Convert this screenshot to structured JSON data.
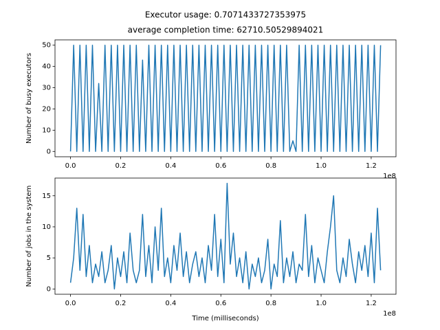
{
  "chart_data": [
    {
      "type": "line",
      "title": "Executor usage: 0.7071433727353975",
      "subtitle": "average completion time: 62710.50529894021",
      "y_label": "Number of busy executors",
      "x_offset_label": "1e8",
      "x": [
        0,
        1250000,
        2500000,
        3750000,
        5000000,
        6250000,
        7500000,
        8750000,
        10000000,
        11250000,
        12500000,
        13750000,
        15000000,
        16250000,
        17500000,
        18750000,
        20000000,
        21250000,
        22500000,
        23750000,
        25000000,
        26250000,
        27500000,
        28750000,
        30000000,
        31250000,
        32500000,
        33750000,
        35000000,
        36250000,
        37500000,
        38750000,
        40000000,
        41250000,
        42500000,
        43750000,
        45000000,
        46250000,
        47500000,
        48750000,
        50000000,
        51250000,
        52500000,
        53750000,
        55000000,
        56250000,
        57500000,
        58750000,
        60000000,
        61250000,
        62500000,
        63750000,
        65000000,
        66250000,
        67500000,
        68750000,
        70000000,
        71250000,
        72500000,
        73750000,
        75000000,
        76250000,
        77500000,
        78750000,
        80000000,
        81250000,
        82500000,
        83750000,
        85000000,
        86250000,
        87500000,
        88750000,
        90000000,
        91250000,
        92500000,
        93750000,
        95000000,
        96250000,
        97500000,
        98750000,
        100000000,
        101250000,
        102500000,
        103750000,
        105000000,
        106250000,
        107500000,
        108750000,
        110000000,
        111250000,
        112500000,
        113750000,
        115000000,
        116250000,
        117500000,
        118750000,
        120000000,
        121250000,
        122500000,
        123750000
      ],
      "series": [
        {
          "color": "#1f77b4",
          "values": [
            0,
            50,
            0,
            50,
            0,
            50,
            0,
            50,
            0,
            32,
            0,
            50,
            0,
            50,
            0,
            50,
            0,
            50,
            0,
            50,
            0,
            50,
            0,
            43,
            0,
            50,
            0,
            50,
            0,
            50,
            0,
            50,
            0,
            50,
            0,
            50,
            0,
            50,
            0,
            50,
            0,
            50,
            0,
            50,
            0,
            50,
            0,
            50,
            0,
            50,
            0,
            50,
            0,
            50,
            0,
            50,
            0,
            50,
            0,
            50,
            0,
            50,
            0,
            50,
            0,
            50,
            0,
            50,
            0,
            50,
            0,
            5,
            0,
            50,
            0,
            50,
            0,
            50,
            0,
            50,
            0,
            50,
            0,
            50,
            0,
            50,
            0,
            50,
            0,
            50,
            0,
            50,
            0,
            50,
            0,
            50,
            0,
            50,
            0,
            50
          ]
        }
      ],
      "xlim": [
        -6200000,
        129900000
      ],
      "xticks": [
        {
          "value": 0,
          "label": "0.0"
        },
        {
          "value": 20000000,
          "label": "0.2"
        },
        {
          "value": 40000000,
          "label": "0.4"
        },
        {
          "value": 60000000,
          "label": "0.6"
        },
        {
          "value": 80000000,
          "label": "0.8"
        },
        {
          "value": 100000000,
          "label": "1.0"
        },
        {
          "value": 120000000,
          "label": "1.2"
        }
      ],
      "ylim": [
        -2.5,
        52.5
      ],
      "yticks": [
        0,
        10,
        20,
        30,
        40,
        50
      ]
    },
    {
      "type": "line",
      "y_label": "Number of jobs in the system",
      "x_label": "Time (milliseconds)",
      "x_offset_label": "1e8",
      "x": [
        0,
        1250000,
        2500000,
        3750000,
        5000000,
        6250000,
        7500000,
        8750000,
        10000000,
        11250000,
        12500000,
        13750000,
        15000000,
        16250000,
        17500000,
        18750000,
        20000000,
        21250000,
        22500000,
        23750000,
        25000000,
        26250000,
        27500000,
        28750000,
        30000000,
        31250000,
        32500000,
        33750000,
        35000000,
        36250000,
        37500000,
        38750000,
        40000000,
        41250000,
        42500000,
        43750000,
        45000000,
        46250000,
        47500000,
        48750000,
        50000000,
        51250000,
        52500000,
        53750000,
        55000000,
        56250000,
        57500000,
        58750000,
        60000000,
        61250000,
        62500000,
        63750000,
        65000000,
        66250000,
        67500000,
        68750000,
        70000000,
        71250000,
        72500000,
        73750000,
        75000000,
        76250000,
        77500000,
        78750000,
        80000000,
        81250000,
        82500000,
        83750000,
        85000000,
        86250000,
        87500000,
        88750000,
        90000000,
        91250000,
        92500000,
        93750000,
        95000000,
        96250000,
        97500000,
        98750000,
        100000000,
        101250000,
        102500000,
        103750000,
        105000000,
        106250000,
        107500000,
        108750000,
        110000000,
        111250000,
        112500000,
        113750000,
        115000000,
        116250000,
        117500000,
        118750000,
        120000000,
        121250000,
        122500000,
        123750000
      ],
      "series": [
        {
          "color": "#1f77b4",
          "values": [
            1,
            5,
            13,
            3,
            12,
            2,
            7,
            1,
            4,
            2,
            6,
            1,
            3,
            7,
            0,
            5,
            2,
            6,
            1,
            9,
            3,
            1,
            3,
            12,
            2,
            7,
            1,
            10,
            3,
            13,
            2,
            5,
            1,
            7,
            3,
            9,
            2,
            6,
            1,
            4,
            6,
            2,
            5,
            1,
            7,
            3,
            12,
            2,
            8,
            1,
            17,
            4,
            9,
            2,
            5,
            1,
            6,
            0,
            4,
            2,
            5,
            1,
            3,
            8,
            0,
            4,
            2,
            11,
            1,
            5,
            2,
            6,
            1,
            4,
            3,
            12,
            2,
            7,
            1,
            5,
            3,
            1,
            6,
            10,
            15,
            3,
            1,
            5,
            2,
            8,
            4,
            1,
            6,
            3,
            7,
            2,
            9,
            1,
            13,
            3
          ]
        }
      ],
      "xlim": [
        -6200000,
        129900000
      ],
      "xticks": [
        {
          "value": 0,
          "label": "0.0"
        },
        {
          "value": 20000000,
          "label": "0.2"
        },
        {
          "value": 40000000,
          "label": "0.4"
        },
        {
          "value": 60000000,
          "label": "0.6"
        },
        {
          "value": 80000000,
          "label": "0.8"
        },
        {
          "value": 100000000,
          "label": "1.0"
        },
        {
          "value": 120000000,
          "label": "1.2"
        }
      ],
      "ylim": [
        -0.85,
        17.85
      ],
      "yticks": [
        0,
        5,
        10,
        15
      ]
    }
  ]
}
